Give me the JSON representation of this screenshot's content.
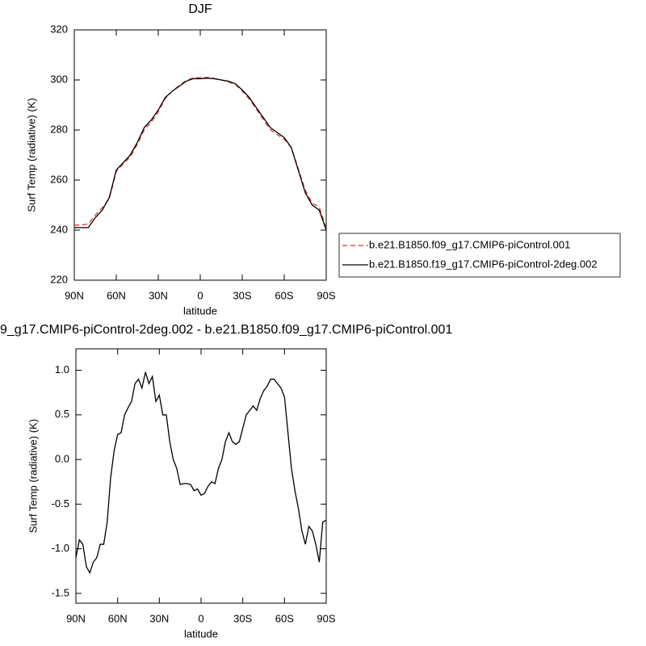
{
  "chart_data": [
    {
      "type": "line",
      "title": "DJF",
      "x_label": "latitude",
      "y_label": "Surf Temp (radiative) (K)",
      "x": [
        90,
        85,
        80,
        75,
        70,
        65,
        60,
        55,
        50,
        45,
        40,
        35,
        30,
        25,
        20,
        15,
        10,
        5,
        0,
        -5,
        -10,
        -15,
        -20,
        -25,
        -30,
        -35,
        -40,
        -45,
        -50,
        -55,
        -60,
        -65,
        -70,
        -75,
        -80,
        -85,
        -90
      ],
      "series": [
        {
          "name": "b.e21.B1850.f09_g17.CMIP6-piControl.001",
          "color": "#e0302c",
          "line_style": "dashed",
          "values": [
            242,
            242,
            242.5,
            246,
            249,
            252.5,
            263.5,
            266.5,
            269.3,
            274.2,
            280.1,
            283.2,
            287.3,
            292.6,
            295.5,
            297.8,
            299.8,
            300.8,
            300.9,
            301,
            300.6,
            300,
            299.2,
            298.3,
            295.6,
            292.4,
            288.4,
            284.2,
            280.1,
            278.2,
            276.3,
            273,
            264.6,
            255.9,
            250.8,
            249.2,
            240.7
          ]
        },
        {
          "name": "b.e21.B1850.f19_g17.CMIP6-piControl-2deg.002",
          "color": "#000000",
          "line_style": "solid",
          "values": [
            241,
            241,
            241,
            245,
            248,
            253,
            264,
            267,
            270,
            275,
            281,
            284,
            288,
            293,
            295.5,
            297.5,
            299.5,
            300.5,
            300.5,
            300.7,
            300.5,
            300,
            299.5,
            298.5,
            296,
            293,
            289,
            285,
            281,
            279,
            277,
            273,
            264,
            255,
            250,
            248,
            240
          ]
        }
      ],
      "xlim": [
        90,
        -90
      ],
      "xticks": [
        {
          "value": 90,
          "label": "90N"
        },
        {
          "value": 60,
          "label": "60N"
        },
        {
          "value": 30,
          "label": "30N"
        },
        0,
        {
          "value": -30,
          "label": "30S"
        },
        {
          "value": -60,
          "label": "60S"
        },
        {
          "value": -90,
          "label": "90S"
        }
      ],
      "ylim": [
        220,
        320
      ],
      "yticks": [
        220,
        240,
        260,
        280,
        300,
        320
      ],
      "legend": "right"
    },
    {
      "type": "line",
      "title": "9_g17.CMIP6-piControl-2deg.002 - b.e21.B1850.f09_g17.CMIP6-piControl.001",
      "x_label": "latitude",
      "y_label": "Surf Temp (radiative) (K)",
      "x": [
        90,
        87.5,
        85,
        82.5,
        80,
        77.5,
        75,
        72.5,
        70,
        67.5,
        65,
        62.5,
        60,
        57.5,
        55,
        52.5,
        50,
        47.5,
        45,
        42.5,
        40,
        37.5,
        35,
        32.5,
        30,
        27.5,
        25,
        22.5,
        20,
        17.5,
        15,
        12.5,
        10,
        7.5,
        5,
        2.5,
        0,
        -2.5,
        -5,
        -7.5,
        -10,
        -12.5,
        -15,
        -17.5,
        -20,
        -22.5,
        -25,
        -27.5,
        -30,
        -32.5,
        -35,
        -37.5,
        -40,
        -42.5,
        -45,
        -47.5,
        -50,
        -52.5,
        -55,
        -57.5,
        -60,
        -62.5,
        -65,
        -67.5,
        -70,
        -72.5,
        -75,
        -77.5,
        -80,
        -82.5,
        -85,
        -87.5,
        -90
      ],
      "series": [
        {
          "color": "#000000",
          "line_style": "solid",
          "values": [
            -1.1,
            -0.9,
            -0.95,
            -1.2,
            -1.27,
            -1.15,
            -1.1,
            -0.95,
            -0.95,
            -0.7,
            -0.2,
            0.1,
            0.28,
            0.3,
            0.5,
            0.58,
            0.65,
            0.85,
            0.9,
            0.8,
            0.98,
            0.85,
            0.93,
            0.65,
            0.72,
            0.5,
            0.5,
            0.2,
            0.0,
            -0.1,
            -0.28,
            -0.27,
            -0.27,
            -0.28,
            -0.35,
            -0.33,
            -0.4,
            -0.38,
            -0.3,
            -0.25,
            -0.27,
            -0.1,
            0.0,
            0.2,
            0.3,
            0.2,
            0.17,
            0.2,
            0.35,
            0.5,
            0.55,
            0.6,
            0.55,
            0.68,
            0.77,
            0.82,
            0.9,
            0.9,
            0.85,
            0.8,
            0.7,
            0.3,
            -0.1,
            -0.35,
            -0.55,
            -0.8,
            -0.95,
            -0.75,
            -0.8,
            -0.95,
            -1.15,
            -0.7,
            -0.68
          ]
        }
      ],
      "xlim": [
        90,
        -90
      ],
      "xticks": [
        {
          "value": 90,
          "label": "90N"
        },
        {
          "value": 60,
          "label": "60N"
        },
        {
          "value": 30,
          "label": "30N"
        },
        0,
        {
          "value": -30,
          "label": "30S"
        },
        {
          "value": -60,
          "label": "60S"
        },
        {
          "value": -90,
          "label": "90S"
        }
      ],
      "ylim": [
        -1.61,
        1.24
      ],
      "yticks": [
        {
          "value": -1.5,
          "label": "-1.5"
        },
        {
          "value": -1,
          "label": "-1.0"
        },
        -0.5,
        {
          "value": 0,
          "label": "0.0"
        },
        0.5,
        {
          "value": 1,
          "label": "1.0"
        }
      ]
    }
  ]
}
